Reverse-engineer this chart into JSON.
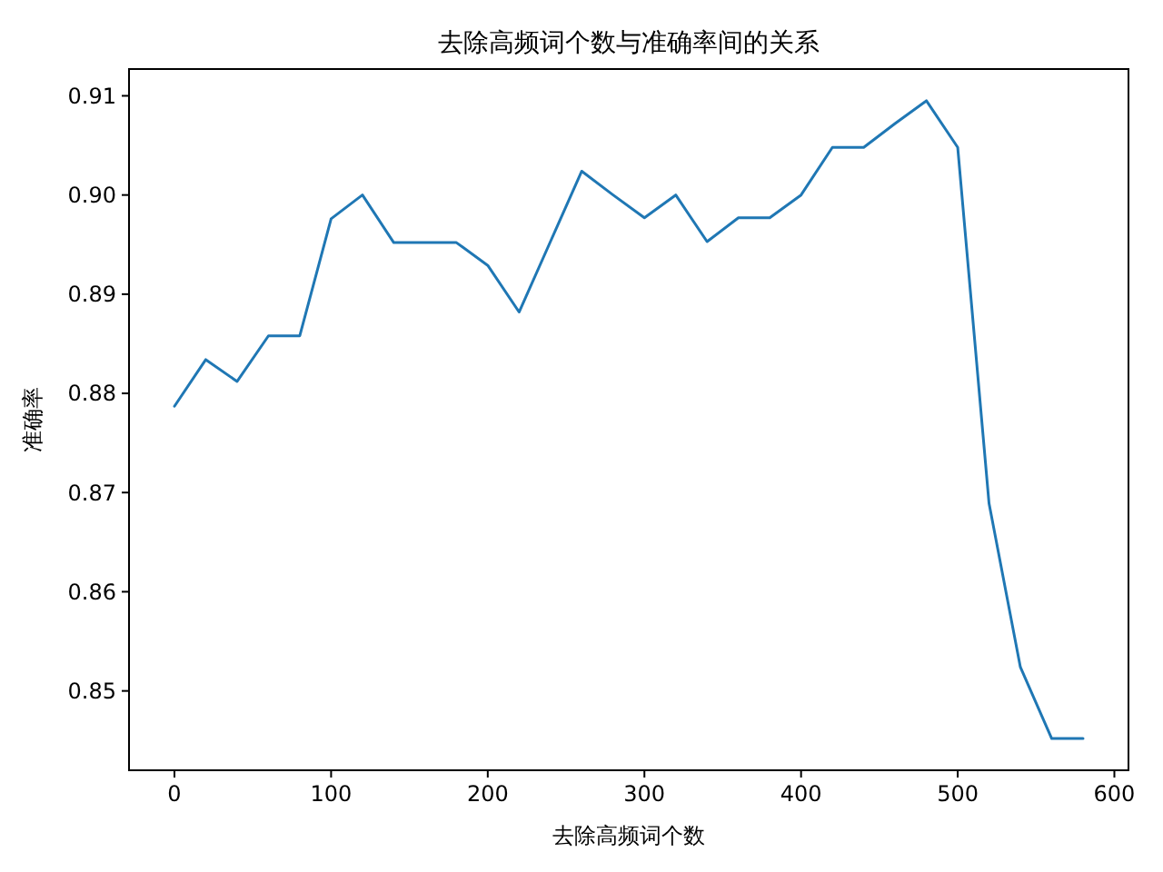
{
  "chart_data": {
    "type": "line",
    "title": "去除高频词个数与准确率间的关系",
    "xlabel": "去除高频词个数",
    "ylabel": "准确率",
    "x": [
      0,
      20,
      40,
      60,
      80,
      100,
      120,
      140,
      160,
      180,
      200,
      220,
      240,
      260,
      280,
      300,
      320,
      340,
      360,
      380,
      400,
      420,
      440,
      460,
      480,
      500,
      520,
      540,
      560,
      580
    ],
    "series": [
      {
        "color": "#1f77b4",
        "values": [
          0.8787,
          0.8834,
          0.8812,
          0.8858,
          0.8858,
          0.8976,
          0.9,
          0.8952,
          0.8952,
          0.8952,
          0.8929,
          0.8882,
          0.8953,
          0.9024,
          0.9,
          0.8977,
          0.9,
          0.8953,
          0.8977,
          0.8977,
          0.9,
          0.9048,
          0.9048,
          0.9072,
          0.9095,
          0.9048,
          0.8689,
          0.8524,
          0.8452,
          0.8452
        ]
      }
    ],
    "xlim": [
      -29,
      609
    ],
    "ylim": [
      0.842,
      0.9127
    ],
    "xticks": [
      0,
      100,
      200,
      300,
      400,
      500,
      600
    ],
    "yticks": [
      {
        "value": 0.85,
        "label": "0.85"
      },
      {
        "value": 0.86,
        "label": "0.86"
      },
      {
        "value": 0.87,
        "label": "0.87"
      },
      {
        "value": 0.88,
        "label": "0.88"
      },
      {
        "value": 0.89,
        "label": "0.89"
      },
      {
        "value": 0.9,
        "label": "0.90"
      },
      {
        "value": 0.91,
        "label": "0.91"
      }
    ],
    "grid": false,
    "marker": "none",
    "line_style": "solid"
  }
}
